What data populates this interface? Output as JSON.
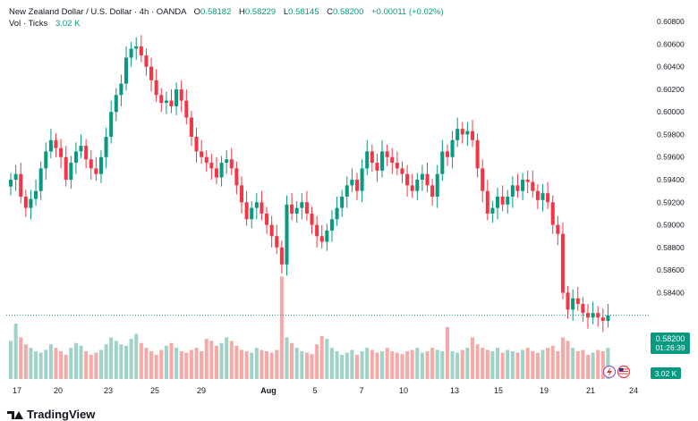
{
  "header": {
    "symbol": "New Zealand Dollar / U.S. Dollar · 4h · OANDA",
    "o_label": "O",
    "o": "0.58182",
    "h_label": "H",
    "h": "0.58229",
    "l_label": "L",
    "l": "0.58145",
    "c_label": "C",
    "c": "0.58200",
    "change": "+0.00011 (+0.02%)",
    "vol_label": "Vol · Ticks",
    "vol": "3.02 K"
  },
  "price_label": {
    "price": "0.58200",
    "countdown": "01:26:39"
  },
  "volume_label": "3.02 K",
  "colors": {
    "up": "#089981",
    "down": "#f23645",
    "up_vol": "#9fd2c8",
    "down_vol": "#f7a9a7",
    "accent": "#089981"
  },
  "icons": [
    "lightning-icon",
    "us-flag-icon"
  ],
  "branding": {
    "name": "TradingView"
  },
  "chart_data": {
    "type": "candlestick",
    "title": "New Zealand Dollar / U.S. Dollar · 4h · OANDA",
    "y_ticks": [
      "0.60800",
      "0.60600",
      "0.60400",
      "0.60200",
      "0.60000",
      "0.59800",
      "0.59600",
      "0.59400",
      "0.59200",
      "0.59000",
      "0.58800",
      "0.58600",
      "0.58400",
      "0.58000"
    ],
    "x_ticks": [
      "17",
      "20",
      "23",
      "25",
      "29",
      "Aug",
      "5",
      "7",
      "10",
      "13",
      "15",
      "19",
      "21",
      "24"
    ],
    "ylim": [
      0.5777,
      0.6088
    ],
    "grid": false,
    "closes": [
      0.594,
      0.5945,
      0.5925,
      0.5915,
      0.5923,
      0.593,
      0.595,
      0.5965,
      0.5975,
      0.5968,
      0.596,
      0.594,
      0.5955,
      0.5965,
      0.597,
      0.5958,
      0.595,
      0.5945,
      0.596,
      0.5978,
      0.6,
      0.6015,
      0.6025,
      0.6048,
      0.6056,
      0.6058,
      0.605,
      0.604,
      0.6028,
      0.6015,
      0.6008,
      0.601,
      0.6005,
      0.602,
      0.601,
      0.5995,
      0.5978,
      0.5965,
      0.596,
      0.5955,
      0.595,
      0.5942,
      0.5955,
      0.5958,
      0.595,
      0.5935,
      0.592,
      0.5905,
      0.5915,
      0.592,
      0.591,
      0.59,
      0.589,
      0.588,
      0.5865,
      0.5918,
      0.591,
      0.5915,
      0.592,
      0.591,
      0.59,
      0.589,
      0.5885,
      0.5895,
      0.5905,
      0.5915,
      0.5925,
      0.5935,
      0.594,
      0.593,
      0.595,
      0.5965,
      0.5955,
      0.5948,
      0.5965,
      0.596,
      0.5955,
      0.595,
      0.5945,
      0.5935,
      0.593,
      0.594,
      0.5945,
      0.5935,
      0.5925,
      0.5945,
      0.5965,
      0.596,
      0.5975,
      0.5985,
      0.598,
      0.5983,
      0.5975,
      0.595,
      0.593,
      0.591,
      0.5915,
      0.5925,
      0.5918,
      0.5925,
      0.5935,
      0.593,
      0.594,
      0.5938,
      0.593,
      0.5922,
      0.5928,
      0.592,
      0.59,
      0.5892,
      0.584,
      0.5825,
      0.5835,
      0.583,
      0.5822,
      0.5818,
      0.5822,
      0.5818,
      0.5815,
      0.582
    ],
    "volumes": [
      55,
      80,
      60,
      50,
      45,
      40,
      38,
      42,
      50,
      45,
      40,
      35,
      45,
      52,
      48,
      40,
      35,
      38,
      42,
      50,
      60,
      55,
      50,
      48,
      58,
      65,
      52,
      45,
      40,
      35,
      42,
      48,
      52,
      45,
      40,
      38,
      42,
      45,
      40,
      58,
      55,
      48,
      52,
      60,
      55,
      48,
      42,
      40,
      38,
      45,
      42,
      40,
      38,
      42,
      148,
      60,
      52,
      45,
      40,
      38,
      36,
      50,
      62,
      58,
      45,
      40,
      35,
      38,
      42,
      35,
      40,
      45,
      42,
      38,
      40,
      45,
      40,
      38,
      36,
      40,
      42,
      45,
      38,
      40,
      45,
      42,
      40,
      75,
      40,
      38,
      42,
      45,
      60,
      50,
      45,
      42,
      40,
      45,
      38,
      42,
      40,
      38,
      42,
      45,
      40,
      38,
      42,
      45,
      48,
      40,
      60,
      55,
      45,
      40,
      42,
      35,
      38,
      42,
      40,
      45
    ],
    "volume_ylim": [
      0,
      160
    ]
  }
}
